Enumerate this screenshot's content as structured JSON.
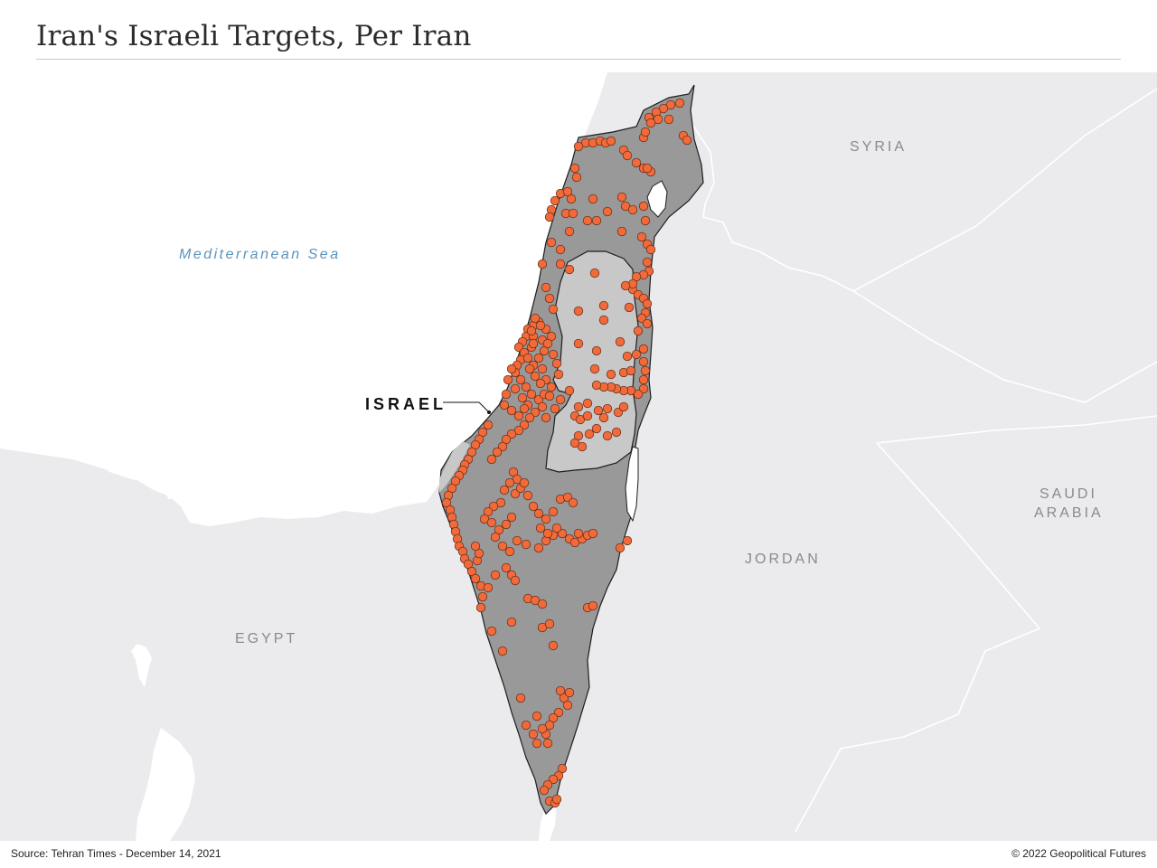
{
  "header": {
    "title": "Iran's Israeli Targets, Per Iran"
  },
  "map": {
    "labels": {
      "sea": "Mediterranean Sea",
      "syria": "SYRIA",
      "saudi_line1": "SAUDI",
      "saudi_line2": "ARABIA",
      "jordan": "JORDAN",
      "egypt": "EGYPT",
      "israel": "ISRAEL"
    },
    "colors": {
      "land": "#ebebed",
      "sea": "#ffffff",
      "israel": "#999999",
      "occupied_territories": "#c8c8c8",
      "target_marker": "#f26a3a",
      "border": "#ffffff"
    },
    "marker_icon": "target-dot"
  },
  "footer": {
    "source": "Source: Tehran Times - December 14, 2021",
    "credit": "© 2022 Geopolitical Futures"
  }
}
